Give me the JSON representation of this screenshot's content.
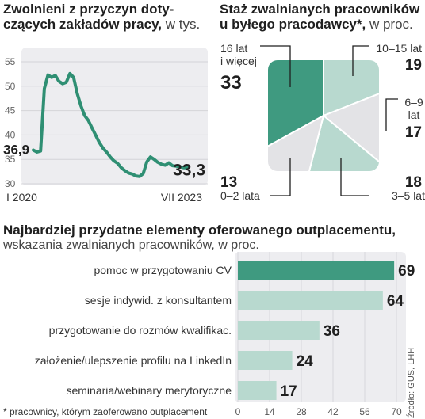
{
  "colors": {
    "dark_green": "#3f9a80",
    "light_green": "#b8d9cf",
    "light_gray": "#e3e3e6",
    "panel_bg": "#ededf0",
    "line": "#2f8f73",
    "text": "#1f1f1f"
  },
  "chart_data": [
    {
      "type": "line",
      "title": "Zwolnieni z przyczyn dotyczących zakładów pracy,",
      "title_line1": "Zwolnieni z przyczyn doty-",
      "title_line2_bold": "czących zakładów pracy,",
      "title_unit": "w tys.",
      "x_start_label": "I 2020",
      "x_end_label": "VII 2023",
      "start_value_label": "36,9",
      "end_value_label": "33,3",
      "y_ticks": [
        "55",
        "50",
        "45",
        "40",
        "35",
        "30"
      ],
      "ylim": [
        30,
        55
      ],
      "grid": true,
      "values": [
        36.9,
        36.5,
        36.7,
        49.5,
        52.3,
        51.8,
        52.2,
        51.0,
        50.5,
        50.8,
        52.6,
        51.8,
        48.5,
        46.0,
        44.0,
        43.0,
        41.5,
        40.0,
        38.5,
        37.3,
        36.5,
        35.5,
        34.7,
        34.2,
        33.3,
        32.7,
        32.2,
        32.0,
        31.6,
        31.5,
        32.1,
        34.5,
        35.5,
        35.0,
        34.4,
        34.0,
        33.8,
        34.3,
        33.7,
        33.6,
        33.5,
        33.3,
        33.3
      ]
    },
    {
      "type": "pie",
      "title_line1": "Staż zwalnianych pracowników",
      "title_line2_bold": "u byłego pracodawcy*,",
      "title_unit": "w proc.",
      "slices": [
        {
          "label": "16 lat i więcej",
          "label_line1": "16 lat",
          "label_line2": "i więcej",
          "value": 33,
          "value_label": "33",
          "color": "#3f9a80"
        },
        {
          "label": "10–15 lat",
          "value": 19,
          "value_label": "19",
          "color": "#b8d9cf"
        },
        {
          "label": "6–9 lat",
          "label_line1": "6–9",
          "label_line2": "lat",
          "value": 17,
          "value_label": "17",
          "color": "#e3e3e6"
        },
        {
          "label": "3–5 lat",
          "value": 18,
          "value_label": "18",
          "color": "#b8d9cf"
        },
        {
          "label": "0–2 lata",
          "value": 13,
          "value_label": "13",
          "color": "#e3e3e6"
        }
      ]
    },
    {
      "type": "bar",
      "orientation": "horizontal",
      "title_bold": "Najbardziej przydatne elementy oferowanego outplacementu,",
      "subtitle": "wskazania zwalnianych pracowników, w proc.",
      "categories": [
        "pomoc w przygotowaniu CV",
        "sesje indywid. z konsultantem",
        "przygotowanie do rozmów kwalifikac.",
        "założenie/ulepszenie profilu na LinkedIn",
        "seminaria/webinary merytoryczne"
      ],
      "values": [
        69,
        64,
        36,
        24,
        17
      ],
      "value_labels": [
        "69",
        "64",
        "36",
        "24",
        "17"
      ],
      "x_ticks": [
        "0",
        "14",
        "28",
        "42",
        "56",
        "70"
      ],
      "xlim": [
        0,
        70
      ],
      "highlight_index": 0
    }
  ],
  "footnote": "* pracownicy, którym zaoferowano outplacement",
  "source": "Źródło: GUS, LHH"
}
